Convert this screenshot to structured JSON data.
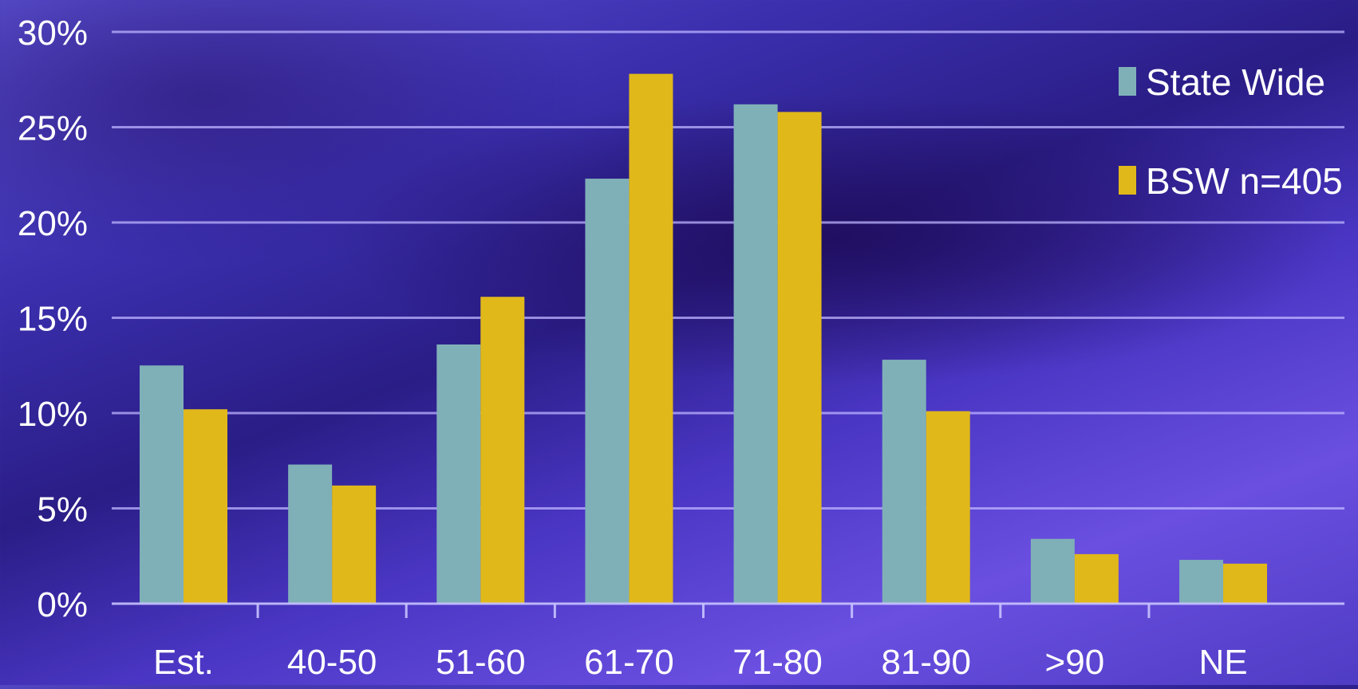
{
  "chart_data": {
    "type": "bar",
    "categories": [
      "Est.",
      "40-50",
      "51-60",
      "61-70",
      "71-80",
      "81-90",
      ">90",
      "NE"
    ],
    "series": [
      {
        "name": "State Wide",
        "color": "#7fb0b8",
        "values": [
          12.5,
          7.3,
          13.6,
          22.3,
          26.2,
          12.8,
          3.4,
          2.3
        ]
      },
      {
        "name": "BSW n=405",
        "color": "#e0b81a",
        "values": [
          10.2,
          6.2,
          16.1,
          27.8,
          25.8,
          10.1,
          2.6,
          2.1
        ]
      }
    ],
    "ylim": [
      0,
      30
    ],
    "yticks": [
      0,
      5,
      10,
      15,
      20,
      25,
      30
    ],
    "ytick_labels": [
      "0%",
      "5%",
      "10%",
      "15%",
      "20%",
      "25%",
      "30%"
    ],
    "grid": true,
    "legend_position": "top-right",
    "title": "",
    "xlabel": "",
    "ylabel": ""
  }
}
